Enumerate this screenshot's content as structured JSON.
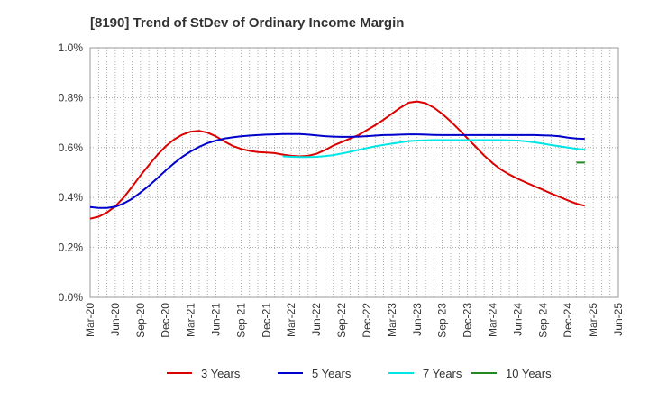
{
  "chart_data": {
    "type": "line",
    "title": "[8190]  Trend of StDev of Ordinary Income Margin",
    "xlabel": "",
    "ylabel": "",
    "ylim": [
      0,
      1.0
    ],
    "y_ticks": [
      0.0,
      0.2,
      0.4,
      0.6,
      0.8,
      1.0
    ],
    "y_tick_labels": [
      "0.0%",
      "0.2%",
      "0.4%",
      "0.6%",
      "0.8%",
      "1.0%"
    ],
    "x_tick_labels": [
      "Mar-20",
      "Jun-20",
      "Sep-20",
      "Dec-20",
      "Mar-21",
      "Jun-21",
      "Sep-21",
      "Dec-21",
      "Mar-22",
      "Jun-22",
      "Sep-22",
      "Dec-22",
      "Mar-23",
      "Jun-23",
      "Sep-23",
      "Dec-23",
      "Mar-24",
      "Jun-24",
      "Sep-24",
      "Dec-24",
      "Mar-25",
      "Jun-25"
    ],
    "grid": true,
    "legend_position": "bottom",
    "series": [
      {
        "name": "3 Years",
        "color": "#dd0000",
        "values": [
          0.315,
          0.323,
          0.34,
          0.365,
          0.4,
          0.443,
          0.488,
          0.53,
          0.57,
          0.605,
          0.632,
          0.652,
          0.664,
          0.667,
          0.66,
          0.645,
          0.625,
          0.607,
          0.595,
          0.587,
          0.582,
          0.58,
          0.578,
          0.572,
          0.567,
          0.565,
          0.567,
          0.575,
          0.59,
          0.608,
          0.622,
          0.636,
          0.65,
          0.67,
          0.69,
          0.712,
          0.736,
          0.76,
          0.78,
          0.785,
          0.778,
          0.76,
          0.735,
          0.705,
          0.672,
          0.637,
          0.603,
          0.568,
          0.538,
          0.512,
          0.492,
          0.475,
          0.46,
          0.445,
          0.431,
          0.416,
          0.402,
          0.388,
          0.375,
          0.367
        ]
      },
      {
        "name": "5 Years",
        "color": "#0000cc",
        "values": [
          0.362,
          0.358,
          0.358,
          0.363,
          0.376,
          0.395,
          0.42,
          0.447,
          0.477,
          0.508,
          0.537,
          0.563,
          0.585,
          0.603,
          0.618,
          0.628,
          0.636,
          0.641,
          0.645,
          0.648,
          0.65,
          0.652,
          0.653,
          0.654,
          0.654,
          0.654,
          0.652,
          0.649,
          0.646,
          0.644,
          0.643,
          0.643,
          0.644,
          0.646,
          0.648,
          0.65,
          0.651,
          0.652,
          0.653,
          0.653,
          0.652,
          0.651,
          0.65,
          0.65,
          0.65,
          0.65,
          0.65,
          0.65,
          0.65,
          0.65,
          0.65,
          0.65,
          0.65,
          0.65,
          0.649,
          0.648,
          0.645,
          0.64,
          0.636,
          0.635
        ]
      },
      {
        "name": "7 Years",
        "color": "#00e5e5",
        "values": [
          null,
          null,
          null,
          null,
          null,
          null,
          null,
          null,
          null,
          null,
          null,
          null,
          null,
          null,
          null,
          null,
          null,
          null,
          null,
          null,
          null,
          null,
          null,
          0.565,
          0.563,
          0.562,
          0.562,
          0.563,
          0.566,
          0.57,
          0.576,
          0.583,
          0.591,
          0.598,
          0.605,
          0.611,
          0.616,
          0.621,
          0.626,
          0.628,
          0.629,
          0.63,
          0.63,
          0.63,
          0.63,
          0.63,
          0.63,
          0.63,
          0.63,
          0.63,
          0.629,
          0.628,
          0.625,
          0.621,
          0.616,
          0.61,
          0.605,
          0.6,
          0.595,
          0.592
        ]
      },
      {
        "name": "10 Years",
        "color": "#228822",
        "values": [
          null,
          null,
          null,
          null,
          null,
          null,
          null,
          null,
          null,
          null,
          null,
          null,
          null,
          null,
          null,
          null,
          null,
          null,
          null,
          null,
          null,
          null,
          null,
          null,
          null,
          null,
          null,
          null,
          null,
          null,
          null,
          null,
          null,
          null,
          null,
          null,
          null,
          null,
          null,
          null,
          null,
          null,
          null,
          null,
          null,
          null,
          null,
          null,
          null,
          null,
          null,
          null,
          null,
          null,
          null,
          null,
          null,
          null,
          0.54,
          0.54
        ]
      }
    ]
  }
}
